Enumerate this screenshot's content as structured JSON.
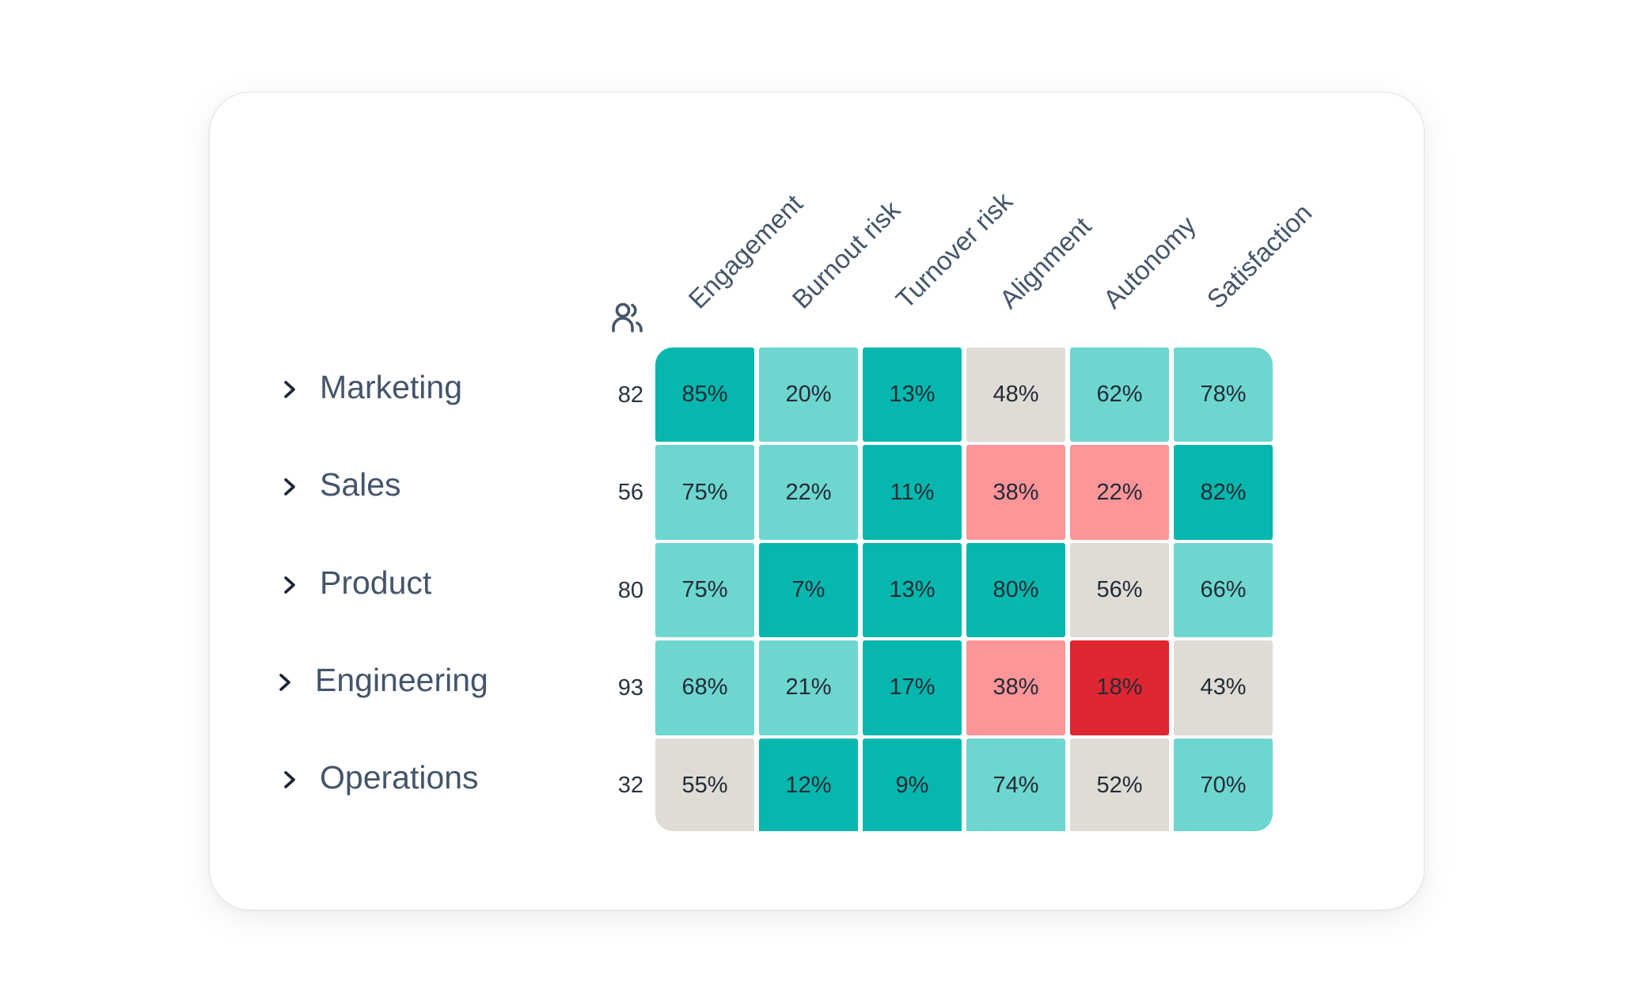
{
  "colors": {
    "strong_good": "#05b7ad",
    "good": "#6dd6cf",
    "neutral": "#dfdcd5",
    "bad": "#fe9599",
    "strong_bad": "#e02631"
  },
  "header": {
    "headcount_icon": "people-icon"
  },
  "chart_data": {
    "type": "heatmap",
    "title": "",
    "xlabel": "",
    "ylabel": "",
    "columns": [
      "Engagement",
      "Burnout risk",
      "Turnover risk",
      "Alignment",
      "Autonomy",
      "Satisfaction"
    ],
    "rows": [
      "Marketing",
      "Sales",
      "Product",
      "Engineering",
      "Operations"
    ],
    "headcount_icon": "people-icon",
    "headcounts": [
      82,
      56,
      80,
      93,
      32
    ],
    "values": [
      [
        85,
        20,
        13,
        48,
        62,
        78
      ],
      [
        75,
        22,
        11,
        38,
        22,
        82
      ],
      [
        75,
        7,
        13,
        80,
        56,
        66
      ],
      [
        68,
        21,
        17,
        38,
        18,
        43
      ],
      [
        55,
        12,
        9,
        74,
        52,
        70
      ]
    ],
    "labels": [
      [
        "85%",
        "20%",
        "13%",
        "48%",
        "62%",
        "78%"
      ],
      [
        "75%",
        "22%",
        "11%",
        "38%",
        "22%",
        "82%"
      ],
      [
        "75%",
        "7%",
        "13%",
        "80%",
        "56%",
        "66%"
      ],
      [
        "68%",
        "21%",
        "17%",
        "38%",
        "18%",
        "43%"
      ],
      [
        "55%",
        "12%",
        "9%",
        "74%",
        "52%",
        "70%"
      ]
    ],
    "categories_color": [
      [
        "strong_good",
        "good",
        "strong_good",
        "neutral",
        "good",
        "good"
      ],
      [
        "good",
        "good",
        "strong_good",
        "bad",
        "bad",
        "strong_good"
      ],
      [
        "good",
        "strong_good",
        "strong_good",
        "strong_good",
        "neutral",
        "good"
      ],
      [
        "good",
        "good",
        "strong_good",
        "bad",
        "strong_bad",
        "neutral"
      ],
      [
        "neutral",
        "strong_good",
        "strong_good",
        "good",
        "neutral",
        "good"
      ]
    ],
    "row_expand_icon": "chevron-right-icon",
    "value_unit": "%"
  }
}
